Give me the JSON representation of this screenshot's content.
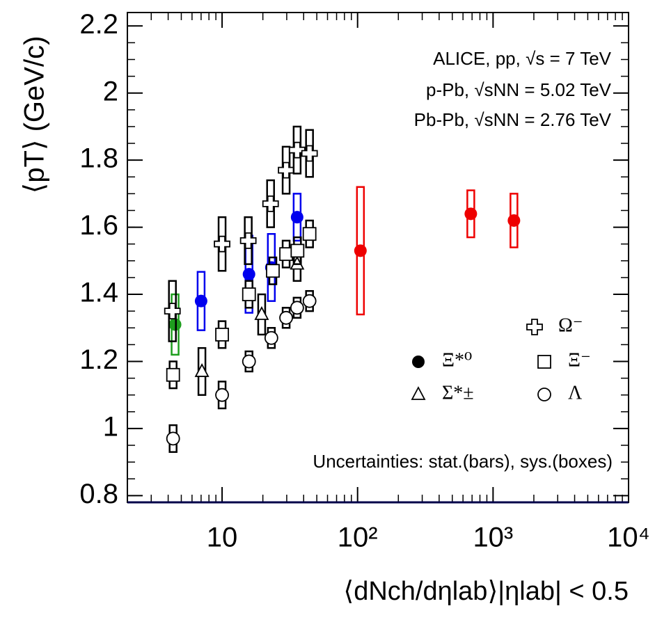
{
  "chart_data": {
    "type": "scatter",
    "x_label": "⟨dNch/dηlab⟩|ηlab| < 0.5",
    "y_label": "⟨pT⟩ (GeV/c)",
    "annotations": [
      "ALICE, pp,  √s = 7 TeV",
      "p-Pb,  √sNN = 5.02 TeV",
      "Pb-Pb,  √sNN = 2.76 TeV",
      "Uncertainties: stat.(bars), sys.(boxes)"
    ],
    "x_log": true,
    "xlim": [
      2,
      10000
    ],
    "ylim": [
      0.78,
      2.24
    ],
    "xticks": [
      10,
      {
        "value": 100,
        "label": "10²"
      },
      {
        "value": 1000,
        "label": "10³"
      },
      {
        "value": 10000,
        "label": "10⁴"
      }
    ],
    "yticks": [
      0.8,
      1,
      1.2,
      1.4,
      1.6,
      1.8,
      2,
      2.2
    ],
    "series": [
      {
        "name": "Ξ*⁰",
        "marker": "filled-circle",
        "color": "#000000",
        "colors": [
          "#1e9e1e",
          "#0000ee",
          "#0000ee",
          "#0000ee",
          "#0000ee",
          "#ee0000",
          "#ee0000",
          "#ee0000"
        ],
        "x": [
          4.5,
          7.0,
          15.8,
          23.1,
          35.8,
          105,
          685,
          1426
        ],
        "values": [
          1.31,
          1.38,
          1.46,
          1.48,
          1.63,
          1.53,
          1.64,
          1.62
        ],
        "errors": [
          0.09,
          0.087,
          0.115,
          0.1,
          0.07,
          0.19,
          0.07,
          0.08
        ]
      },
      {
        "name": "Σ*±",
        "marker": "triangle",
        "color": "#000000",
        "x": [
          7.1,
          19.6,
          35.8
        ],
        "values": [
          1.17,
          1.34,
          1.49
        ],
        "errors": [
          0.07,
          0.06,
          0.05
        ]
      },
      {
        "name": "Ω⁻",
        "marker": "cross",
        "color": "#000000",
        "x": [
          4.3,
          10,
          15.6,
          22.8,
          29.7,
          35.8,
          44.2
        ],
        "values": [
          1.35,
          1.55,
          1.56,
          1.67,
          1.77,
          1.83,
          1.82
        ],
        "errors": [
          0.09,
          0.08,
          0.07,
          0.07,
          0.07,
          0.07,
          0.07
        ]
      },
      {
        "name": "Ξ⁻",
        "marker": "square",
        "color": "#000000",
        "x": [
          4.35,
          10,
          15.8,
          23.7,
          29.7,
          36,
          44.2
        ],
        "values": [
          1.16,
          1.28,
          1.4,
          1.47,
          1.52,
          1.53,
          1.58
        ],
        "errors": [
          0.04,
          0.04,
          0.04,
          0.04,
          0.04,
          0.04,
          0.04
        ]
      },
      {
        "name": "Λ",
        "marker": "circle",
        "color": "#000000",
        "x": [
          4.35,
          10,
          15.8,
          23.1,
          29.7,
          35.8,
          44.2
        ],
        "values": [
          0.97,
          1.1,
          1.2,
          1.27,
          1.33,
          1.36,
          1.38
        ],
        "errors": [
          0.04,
          0.04,
          0.03,
          0.03,
          0.03,
          0.03,
          0.03
        ]
      }
    ]
  }
}
